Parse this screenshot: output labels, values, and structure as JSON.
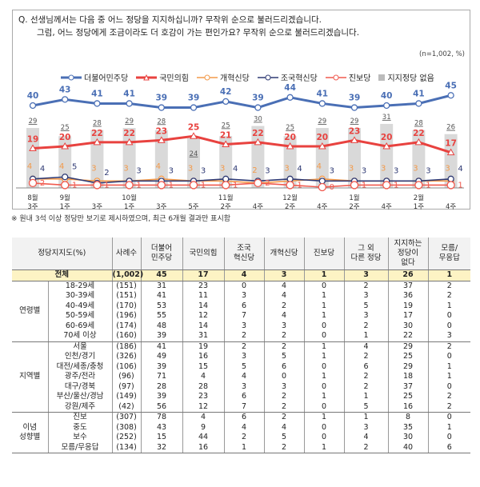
{
  "question": [
    "Q. 선생님께서는 다음 중 어느 정당을 지지하십니까? 무작위 순으로 불러드리겠습니다.",
    "그럼, 어느 정당에게 조금이라도 더 호감이 가는 편인가요? 무작위 순으로 불러드리겠습니다."
  ],
  "unit": "(n=1,002, %)",
  "note": "※ 원내 3석 이상 정당만 보기로 제시하였으며, 최근 6개월 결과만 표시함",
  "chart_data": {
    "type": "line",
    "categories": [
      [
        "8월",
        "3주"
      ],
      [
        "9월",
        "1주"
      ],
      [
        "",
        "3주"
      ],
      [
        "10월",
        "1주"
      ],
      [
        "",
        "3주"
      ],
      [
        "",
        "5주"
      ],
      [
        "11월",
        "2주"
      ],
      [
        "",
        "4주"
      ],
      [
        "12월",
        "2주"
      ],
      [
        "",
        "4주"
      ],
      [
        "1월",
        "2주"
      ],
      [
        "",
        "4주"
      ],
      [
        "2월",
        "1주"
      ],
      [
        "",
        "4주"
      ]
    ],
    "series": [
      {
        "name": "더불어민주당",
        "color": "#4a6fb5",
        "marker": "circle",
        "values": [
          40,
          43,
          41,
          41,
          39,
          39,
          42,
          39,
          44,
          41,
          39,
          40,
          41,
          45
        ]
      },
      {
        "name": "국민의힘",
        "color": "#e8423f",
        "marker": "triangle",
        "values": [
          19,
          20,
          22,
          22,
          23,
          25,
          21,
          22,
          20,
          20,
          23,
          20,
          22,
          17
        ]
      },
      {
        "name": "개혁신당",
        "color": "#f39a4a",
        "marker": "circle",
        "values": [
          4,
          4,
          3,
          3,
          4,
          3,
          3,
          2,
          3,
          4,
          3,
          3,
          3,
          3
        ]
      },
      {
        "name": "조국혁신당",
        "color": "#2f3a74",
        "marker": "circle",
        "values": [
          4,
          5,
          2,
          3,
          3,
          3,
          4,
          3,
          4,
          3,
          3,
          3,
          3,
          4
        ]
      },
      {
        "name": "진보당",
        "color": "#f05a4f",
        "marker": "circle",
        "values": [
          2,
          1,
          1,
          1,
          1,
          1,
          1,
          2,
          1,
          0,
          1,
          1,
          1,
          1
        ]
      }
    ],
    "bars": {
      "name": "지지정당 없음",
      "color": "#d9d9d9",
      "values": [
        29,
        25,
        28,
        29,
        28,
        24,
        25,
        30,
        25,
        29,
        29,
        31,
        28,
        26
      ]
    },
    "legend": "top"
  },
  "table": {
    "headers": [
      "정당지지도(%)",
      "사례수",
      "더불어\n민주당",
      "국민의힘",
      "조국\n혁신당",
      "개혁신당",
      "진보당",
      "그 외\n다른 정당",
      "지지하는\n정당이\n없다",
      "모름/\n무응답"
    ],
    "total": [
      "전체",
      "(1,002)",
      "45",
      "17",
      "4",
      "3",
      "1",
      "3",
      "26",
      "1"
    ],
    "groups": [
      {
        "label": "연령별",
        "rows": [
          [
            "18-29세",
            "(151)",
            "31",
            "23",
            "0",
            "4",
            "0",
            "2",
            "37",
            "2"
          ],
          [
            "30-39세",
            "(151)",
            "41",
            "11",
            "3",
            "4",
            "1",
            "3",
            "36",
            "2"
          ],
          [
            "40-49세",
            "(170)",
            "53",
            "14",
            "6",
            "2",
            "1",
            "5",
            "19",
            "1"
          ],
          [
            "50-59세",
            "(196)",
            "55",
            "12",
            "7",
            "4",
            "1",
            "3",
            "17",
            "0"
          ],
          [
            "60-69세",
            "(174)",
            "48",
            "14",
            "3",
            "3",
            "0",
            "2",
            "30",
            "0"
          ],
          [
            "70세 이상",
            "(160)",
            "39",
            "31",
            "2",
            "2",
            "0",
            "1",
            "22",
            "3"
          ]
        ]
      },
      {
        "label": "지역별",
        "rows": [
          [
            "서울",
            "(186)",
            "41",
            "19",
            "2",
            "2",
            "1",
            "4",
            "29",
            "2"
          ],
          [
            "인천/경기",
            "(326)",
            "49",
            "16",
            "3",
            "5",
            "1",
            "2",
            "25",
            "0"
          ],
          [
            "대전/세종/충청",
            "(106)",
            "39",
            "15",
            "5",
            "6",
            "0",
            "6",
            "29",
            "1"
          ],
          [
            "광주/전라",
            "(96)",
            "71",
            "4",
            "4",
            "0",
            "1",
            "2",
            "18",
            "1"
          ],
          [
            "대구/경북",
            "(97)",
            "28",
            "28",
            "3",
            "3",
            "0",
            "2",
            "37",
            "0"
          ],
          [
            "부산/울산/경남",
            "(149)",
            "39",
            "23",
            "6",
            "2",
            "1",
            "1",
            "25",
            "2"
          ],
          [
            "강원/제주",
            "(42)",
            "56",
            "12",
            "7",
            "2",
            "0",
            "5",
            "16",
            "2"
          ]
        ]
      },
      {
        "label": "이념\n성향별",
        "rows": [
          [
            "진보",
            "(307)",
            "78",
            "4",
            "6",
            "2",
            "1",
            "1",
            "8",
            "0"
          ],
          [
            "중도",
            "(308)",
            "43",
            "9",
            "4",
            "4",
            "0",
            "3",
            "35",
            "1"
          ],
          [
            "보수",
            "(252)",
            "15",
            "44",
            "2",
            "5",
            "0",
            "4",
            "30",
            "0"
          ],
          [
            "모름/무응답",
            "(134)",
            "32",
            "16",
            "1",
            "2",
            "1",
            "2",
            "40",
            "6"
          ]
        ]
      }
    ]
  }
}
